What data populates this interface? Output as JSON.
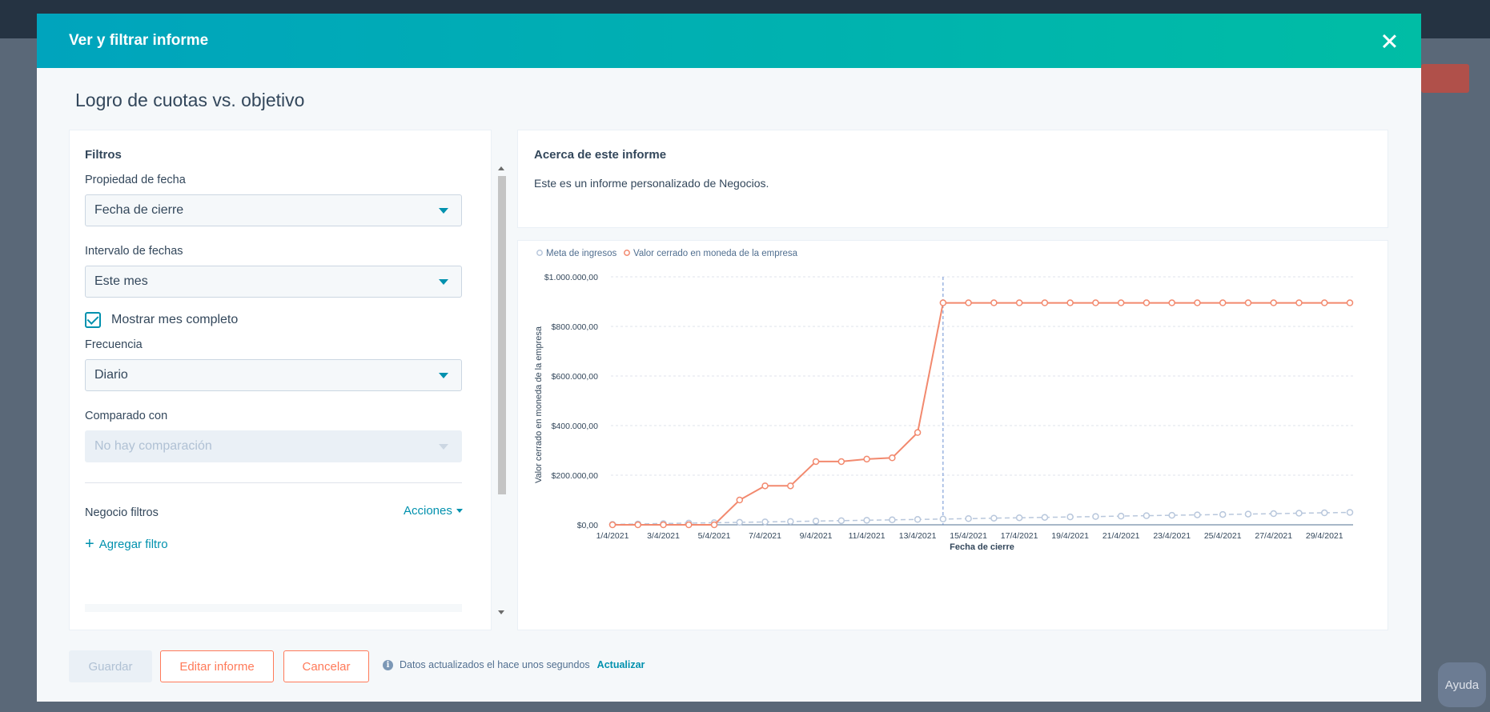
{
  "modal": {
    "title": "Ver y filtrar informe",
    "report_title": "Logro de cuotas vs. objetivo"
  },
  "filters": {
    "heading": "Filtros",
    "date_property_label": "Propiedad de fecha",
    "date_property_value": "Fecha de cierre",
    "date_range_label": "Intervalo de fechas",
    "date_range_value": "Este mes",
    "full_month_label": "Mostrar mes completo",
    "full_month_checked": true,
    "frequency_label": "Frecuencia",
    "frequency_value": "Diario",
    "compare_label": "Comparado con",
    "compare_placeholder": "No hay comparación",
    "deal_filters_label": "Negocio filtros",
    "actions_label": "Acciones",
    "add_filter_label": "Agregar filtro"
  },
  "about": {
    "heading": "Acerca de este informe",
    "text": "Este es un informe personalizado de Negocios."
  },
  "footer": {
    "save_label": "Guardar",
    "edit_label": "Editar informe",
    "cancel_label": "Cancelar",
    "status_text": "Datos actualizados el hace unos segundos",
    "refresh_label": "Actualizar"
  },
  "background": {
    "help_label": "Ayuda"
  },
  "colors": {
    "header_gradient_start": "#00a4bd",
    "header_gradient_end": "#00bda5",
    "accent": "#0091ae",
    "orange": "#ff7a59",
    "series_goal": "#b8c7dc",
    "series_closed": "#f2896e"
  },
  "chart_data": {
    "type": "line",
    "xlabel": "Fecha de cierre",
    "ylabel": "Valor cerrado en moneda de la empresa",
    "ylim": [
      0,
      1000000
    ],
    "y_ticks": [
      "$0,00",
      "$200.000,00",
      "$400.000,00",
      "$600.000,00",
      "$800.000,00",
      "$1.000.000,00"
    ],
    "x_tick_labels": [
      "1/4/2021",
      "3/4/2021",
      "5/4/2021",
      "7/4/2021",
      "9/4/2021",
      "11/4/2021",
      "13/4/2021",
      "15/4/2021",
      "17/4/2021",
      "19/4/2021",
      "21/4/2021",
      "23/4/2021",
      "25/4/2021",
      "27/4/2021",
      "29/4/2021"
    ],
    "x": [
      "1/4/2021",
      "2/4/2021",
      "3/4/2021",
      "4/4/2021",
      "5/4/2021",
      "6/4/2021",
      "7/4/2021",
      "8/4/2021",
      "9/4/2021",
      "10/4/2021",
      "11/4/2021",
      "12/4/2021",
      "13/4/2021",
      "14/4/2021",
      "15/4/2021",
      "16/4/2021",
      "17/4/2021",
      "18/4/2021",
      "19/4/2021",
      "20/4/2021",
      "21/4/2021",
      "22/4/2021",
      "23/4/2021",
      "24/4/2021",
      "25/4/2021",
      "26/4/2021",
      "27/4/2021",
      "28/4/2021",
      "29/4/2021",
      "30/4/2021"
    ],
    "legend_position": "top-left",
    "grid": true,
    "crosshair_x": "14/4/2021",
    "series": [
      {
        "name": "Meta de ingresos",
        "style": "dashed",
        "values": [
          1700,
          3300,
          5000,
          6700,
          8300,
          10000,
          11700,
          13300,
          15000,
          16700,
          18300,
          20000,
          21700,
          23300,
          25000,
          26700,
          28300,
          30000,
          31700,
          33300,
          35000,
          36700,
          38300,
          40000,
          41700,
          43300,
          45000,
          46700,
          48300,
          50000
        ]
      },
      {
        "name": "Valor cerrado en moneda de la empresa",
        "style": "solid",
        "values": [
          0,
          0,
          0,
          0,
          0,
          100000,
          157000,
          157000,
          255000,
          255000,
          265000,
          270000,
          372000,
          895000,
          895000,
          895000,
          895000,
          895000,
          895000,
          895000,
          895000,
          895000,
          895000,
          895000,
          895000,
          895000,
          895000,
          895000,
          895000,
          895000
        ]
      }
    ]
  }
}
